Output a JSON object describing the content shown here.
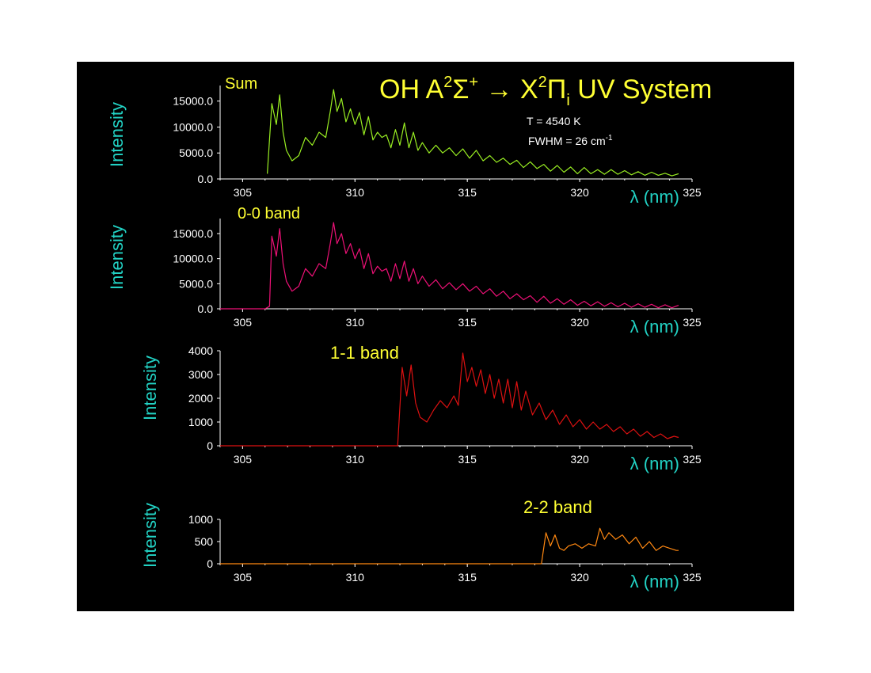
{
  "slide": {
    "title": {
      "prefix": "OH  A",
      "sup1": "2",
      "sigma": "Σ",
      "sup2": "+",
      "arrow": " → X",
      "sup3": "2",
      "pi": "Π",
      "sub": "i",
      "suffix": " UV System"
    },
    "params": {
      "temperature": "T = 4540 K",
      "fwhm": "FWHM = 26 cm",
      "fwhm_sup": "-1"
    }
  },
  "colors": {
    "background": "#000000",
    "title": "#ffff33",
    "axis_label": "#22d3c5",
    "axis": "#ffffff",
    "sum": "#99ee22",
    "band00": "#ee1177",
    "band11": "#dd1111",
    "band22": "#ff8811"
  },
  "chart_data": [
    {
      "type": "line",
      "label": "Sum",
      "ylabel": "Intensity",
      "xlabel": "λ (nm)",
      "xlim": [
        304,
        325
      ],
      "ylim": [
        0,
        18000
      ],
      "xticks": [
        "305",
        "310",
        "315",
        "320",
        "325"
      ],
      "yticks": [
        "0.0",
        "5000.0",
        "10000.0",
        "15000.0"
      ],
      "ytick_values": [
        0,
        5000,
        10000,
        15000
      ],
      "series": [
        {
          "x": [
            306.1,
            306.3,
            306.5,
            306.65,
            306.8,
            306.95,
            307.2,
            307.5,
            307.8,
            308.1,
            308.4,
            308.7,
            308.9,
            309.05,
            309.2,
            309.4,
            309.6,
            309.8,
            310.0,
            310.2,
            310.4,
            310.6,
            310.8,
            311.0,
            311.2,
            311.4,
            311.6,
            311.8,
            312.0,
            312.2,
            312.4,
            312.6,
            312.8,
            313.0,
            313.3,
            313.6,
            313.9,
            314.2,
            314.5,
            314.8,
            315.1,
            315.4,
            315.7,
            316.0,
            316.3,
            316.6,
            316.9,
            317.2,
            317.5,
            317.8,
            318.1,
            318.4,
            318.7,
            319.0,
            319.3,
            319.6,
            319.9,
            320.2,
            320.5,
            320.8,
            321.1,
            321.4,
            321.7,
            322.0,
            322.3,
            322.6,
            322.9,
            323.2,
            323.5,
            323.8,
            324.1,
            324.4
          ],
          "y": [
            1000,
            14500,
            10500,
            16200,
            9000,
            5500,
            3500,
            4500,
            8000,
            6500,
            9000,
            8000,
            13000,
            17200,
            13000,
            15500,
            11000,
            13500,
            10500,
            12800,
            8500,
            12000,
            7500,
            9000,
            8000,
            8500,
            6000,
            9500,
            6500,
            10800,
            6000,
            9000,
            5500,
            7000,
            5000,
            6500,
            5000,
            6000,
            4500,
            5800,
            4000,
            5500,
            3500,
            4500,
            3200,
            4000,
            2800,
            3600,
            2200,
            3300,
            2000,
            2800,
            1500,
            2600,
            1300,
            2300,
            1000,
            2200,
            1000,
            1800,
            900,
            1800,
            900,
            1600,
            800,
            1400,
            700,
            1300,
            700,
            1100,
            600,
            1000
          ]
        }
      ]
    },
    {
      "type": "line",
      "label": "0-0 band",
      "ylabel": "Intensity",
      "xlabel": "λ (nm)",
      "xlim": [
        304,
        325
      ],
      "ylim": [
        0,
        18000
      ],
      "xticks": [
        "305",
        "310",
        "315",
        "320",
        "325"
      ],
      "yticks": [
        "0.0",
        "5000.0",
        "10000.0",
        "15000.0"
      ],
      "ytick_values": [
        0,
        5000,
        10000,
        15000
      ],
      "series": [
        {
          "x": [
            304.0,
            306.0,
            306.2,
            306.3,
            306.5,
            306.65,
            306.8,
            306.95,
            307.2,
            307.5,
            307.8,
            308.1,
            308.4,
            308.7,
            308.9,
            309.05,
            309.2,
            309.4,
            309.6,
            309.8,
            310.0,
            310.2,
            310.4,
            310.6,
            310.8,
            311.0,
            311.2,
            311.4,
            311.6,
            311.8,
            312.0,
            312.2,
            312.4,
            312.6,
            312.8,
            313.0,
            313.3,
            313.6,
            313.9,
            314.2,
            314.5,
            314.8,
            315.1,
            315.4,
            315.7,
            316.0,
            316.3,
            316.6,
            316.9,
            317.2,
            317.5,
            317.8,
            318.1,
            318.4,
            318.7,
            319.0,
            319.3,
            319.6,
            319.9,
            320.2,
            320.5,
            320.8,
            321.1,
            321.4,
            321.7,
            322.0,
            322.3,
            322.6,
            322.9,
            323.2,
            323.5,
            323.8,
            324.1,
            324.4
          ],
          "y": [
            0,
            0,
            500,
            14500,
            10500,
            16000,
            9000,
            5500,
            3500,
            4500,
            8000,
            6500,
            9000,
            8000,
            13000,
            17200,
            13000,
            15000,
            11000,
            13000,
            10000,
            12000,
            8000,
            11000,
            7000,
            8500,
            7500,
            8000,
            5500,
            9000,
            6000,
            9500,
            5500,
            8000,
            5000,
            6500,
            4500,
            5800,
            4000,
            5200,
            3800,
            5000,
            3500,
            4500,
            3000,
            4000,
            2500,
            3500,
            2000,
            3000,
            1800,
            2600,
            1300,
            2500,
            1100,
            2000,
            900,
            1800,
            700,
            1500,
            600,
            1400,
            500,
            1200,
            400,
            1100,
            300,
            1000,
            300,
            900,
            200,
            800,
            200,
            700
          ]
        }
      ]
    },
    {
      "type": "line",
      "label": "1-1 band",
      "ylabel": "Intensity",
      "xlabel": "λ (nm)",
      "xlim": [
        304,
        325
      ],
      "ylim": [
        0,
        4000
      ],
      "xticks": [
        "305",
        "310",
        "315",
        "320",
        "325"
      ],
      "yticks": [
        "0",
        "1000",
        "2000",
        "3000",
        "4000"
      ],
      "ytick_values": [
        0,
        1000,
        2000,
        3000,
        4000
      ],
      "series": [
        {
          "x": [
            304.0,
            311.9,
            312.1,
            312.3,
            312.5,
            312.7,
            312.9,
            313.2,
            313.5,
            313.8,
            314.1,
            314.4,
            314.6,
            314.8,
            315.0,
            315.2,
            315.4,
            315.6,
            315.8,
            316.0,
            316.2,
            316.4,
            316.6,
            316.8,
            317.0,
            317.2,
            317.4,
            317.6,
            317.9,
            318.2,
            318.5,
            318.8,
            319.1,
            319.4,
            319.7,
            320.0,
            320.3,
            320.6,
            320.9,
            321.2,
            321.5,
            321.8,
            322.1,
            322.4,
            322.7,
            323.0,
            323.3,
            323.6,
            323.9,
            324.2,
            324.4
          ],
          "y": [
            0,
            0,
            3300,
            2100,
            3400,
            1800,
            1200,
            1000,
            1500,
            1900,
            1600,
            2100,
            1700,
            3900,
            2700,
            3300,
            2500,
            3200,
            2200,
            3000,
            2000,
            2800,
            1800,
            2800,
            1600,
            2700,
            1500,
            2300,
            1300,
            1800,
            1100,
            1500,
            900,
            1300,
            800,
            1100,
            700,
            1000,
            700,
            900,
            600,
            800,
            500,
            700,
            400,
            600,
            350,
            500,
            300,
            400,
            350
          ]
        }
      ]
    },
    {
      "type": "line",
      "label": "2-2 band",
      "ylabel": "Intensity",
      "xlabel": "λ (nm)",
      "xlim": [
        304,
        325
      ],
      "ylim": [
        0,
        1000
      ],
      "xticks": [
        "305",
        "310",
        "315",
        "320",
        "325"
      ],
      "yticks": [
        "0",
        "500",
        "1000"
      ],
      "ytick_values": [
        0,
        500,
        1000
      ],
      "series": [
        {
          "x": [
            304.0,
            318.3,
            318.5,
            318.7,
            318.9,
            319.1,
            319.3,
            319.5,
            319.8,
            320.1,
            320.4,
            320.7,
            320.9,
            321.1,
            321.3,
            321.6,
            321.9,
            322.2,
            322.5,
            322.8,
            323.1,
            323.4,
            323.7,
            324.0,
            324.3,
            324.4
          ],
          "y": [
            0,
            0,
            700,
            400,
            650,
            350,
            300,
            400,
            450,
            350,
            450,
            400,
            800,
            550,
            700,
            550,
            650,
            450,
            600,
            350,
            500,
            300,
            400,
            350,
            300,
            300
          ]
        }
      ]
    }
  ]
}
